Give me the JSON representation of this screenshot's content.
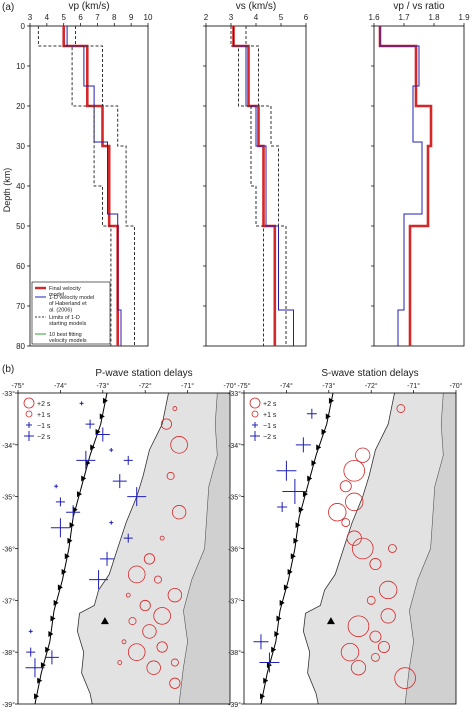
{
  "panel_a_label": "(a)",
  "panel_b_label": "(b)",
  "depth_axis_label": "Depth (km)",
  "profile_titles": [
    "vp (km/s)",
    "vs (km/s)",
    "vp / vs ratio"
  ],
  "legend": [
    {
      "label": "Final velocity model",
      "color": "#d62728",
      "style": "thick"
    },
    {
      "label": "1-D velocity model of Haberland et al. (2006)",
      "color": "#1f1fb4",
      "style": "solid"
    },
    {
      "label": "Limits of 1-D starting models",
      "color": "#333333",
      "style": "dashed"
    },
    {
      "label": "10 best fitting velocity models",
      "color": "#2ca02c",
      "style": "solid"
    }
  ],
  "map_titles": [
    "P-wave station delays",
    "S-wave station delays"
  ],
  "map_legend": [
    "+2 s",
    "+1 s",
    "−1 s",
    "−2 s"
  ],
  "map_lon_ticks": [
    "-75°",
    "-74°",
    "-73°",
    "-72°",
    "-71°",
    "-70°"
  ],
  "map_lat_ticks": [
    "-33°",
    "-34°",
    "-35°",
    "-36°",
    "-37°",
    "-38°",
    "-39°"
  ],
  "chart_data": [
    {
      "type": "line",
      "title": "vp (km/s)",
      "ylabel": "Depth (km)",
      "xlim": [
        3,
        10
      ],
      "ylim": [
        80,
        0
      ],
      "xticks": [
        3,
        4,
        5,
        6,
        7,
        8,
        9,
        10
      ],
      "yticks": [
        0,
        10,
        20,
        30,
        40,
        50,
        60,
        70,
        80
      ],
      "series": [
        {
          "name": "Final velocity model",
          "color": "#d62728",
          "values": [
            [
              5.0,
              0
            ],
            [
              5.0,
              5
            ],
            [
              6.4,
              5
            ],
            [
              6.4,
              20
            ],
            [
              7.3,
              20
            ],
            [
              7.3,
              30
            ],
            [
              7.7,
              30
            ],
            [
              7.7,
              50
            ],
            [
              8.2,
              50
            ],
            [
              8.2,
              80
            ]
          ]
        },
        {
          "name": "1-D velocity model of Haberland et al. (2006)",
          "color": "#1f1fb4",
          "values": [
            [
              5.2,
              0
            ],
            [
              5.2,
              5
            ],
            [
              6.2,
              5
            ],
            [
              6.2,
              15
            ],
            [
              6.8,
              15
            ],
            [
              6.8,
              29
            ],
            [
              7.6,
              29
            ],
            [
              7.6,
              47
            ],
            [
              8.2,
              47
            ],
            [
              8.2,
              71
            ],
            [
              8.4,
              71
            ],
            [
              8.4,
              80
            ]
          ]
        },
        {
          "name": "Limits of 1-D starting models (min)",
          "color": "#333333",
          "values": [
            [
              3.5,
              0
            ],
            [
              3.5,
              5
            ],
            [
              5.5,
              5
            ],
            [
              5.5,
              20
            ],
            [
              6.8,
              20
            ],
            [
              6.8,
              40
            ],
            [
              7.3,
              40
            ],
            [
              7.3,
              50
            ],
            [
              7.8,
              50
            ],
            [
              7.8,
              80
            ]
          ]
        },
        {
          "name": "Limits of 1-D starting models (max)",
          "color": "#333333",
          "values": [
            [
              5.7,
              0
            ],
            [
              5.7,
              5
            ],
            [
              7.3,
              5
            ],
            [
              7.3,
              20
            ],
            [
              8.2,
              20
            ],
            [
              8.2,
              30
            ],
            [
              8.7,
              30
            ],
            [
              8.7,
              50
            ],
            [
              9.2,
              50
            ],
            [
              9.2,
              80
            ]
          ]
        }
      ]
    },
    {
      "type": "line",
      "title": "vs (km/s)",
      "xlim": [
        2,
        6
      ],
      "ylim": [
        80,
        0
      ],
      "xticks": [
        2,
        3,
        4,
        5,
        6
      ],
      "series": [
        {
          "name": "Final velocity model",
          "color": "#d62728",
          "values": [
            [
              3.1,
              0
            ],
            [
              3.1,
              5
            ],
            [
              3.7,
              5
            ],
            [
              3.7,
              20
            ],
            [
              4.1,
              20
            ],
            [
              4.1,
              30
            ],
            [
              4.3,
              30
            ],
            [
              4.3,
              50
            ],
            [
              4.75,
              50
            ],
            [
              4.75,
              80
            ]
          ]
        },
        {
          "name": "1-D velocity model of Haberland et al. (2006)",
          "color": "#1f1fb4",
          "values": [
            [
              3.1,
              0
            ],
            [
              3.1,
              5
            ],
            [
              3.6,
              5
            ],
            [
              3.6,
              20
            ],
            [
              4.0,
              20
            ],
            [
              4.0,
              30
            ],
            [
              4.4,
              30
            ],
            [
              4.4,
              50
            ],
            [
              4.9,
              50
            ],
            [
              4.9,
              71
            ],
            [
              5.5,
              71
            ],
            [
              5.5,
              80
            ]
          ]
        },
        {
          "name": "Limits of 1-D starting models (min)",
          "color": "#333333",
          "values": [
            [
              3.0,
              0
            ],
            [
              3.0,
              5
            ],
            [
              3.3,
              5
            ],
            [
              3.3,
              20
            ],
            [
              3.8,
              20
            ],
            [
              3.8,
              40
            ],
            [
              4.0,
              40
            ],
            [
              4.0,
              50
            ],
            [
              4.3,
              50
            ],
            [
              4.3,
              80
            ]
          ]
        },
        {
          "name": "Limits of 1-D starting models (max)",
          "color": "#333333",
          "values": [
            [
              3.6,
              0
            ],
            [
              3.6,
              5
            ],
            [
              4.1,
              5
            ],
            [
              4.1,
              20
            ],
            [
              4.6,
              20
            ],
            [
              4.6,
              30
            ],
            [
              4.9,
              30
            ],
            [
              4.9,
              50
            ],
            [
              5.2,
              50
            ],
            [
              5.2,
              80
            ]
          ]
        }
      ]
    },
    {
      "type": "line",
      "title": "vp / vs ratio",
      "xlim": [
        1.6,
        1.9
      ],
      "ylim": [
        80,
        0
      ],
      "xticks": [
        1.6,
        1.7,
        1.8,
        1.9
      ],
      "series": [
        {
          "name": "Final velocity model",
          "color": "#d62728",
          "values": [
            [
              1.62,
              0
            ],
            [
              1.62,
              5
            ],
            [
              1.74,
              5
            ],
            [
              1.74,
              20
            ],
            [
              1.79,
              20
            ],
            [
              1.79,
              30
            ],
            [
              1.78,
              30
            ],
            [
              1.78,
              50
            ],
            [
              1.72,
              50
            ],
            [
              1.72,
              80
            ]
          ]
        },
        {
          "name": "1-D velocity model of Haberland et al. (2006)",
          "color": "#1f1fb4",
          "values": [
            [
              1.62,
              0
            ],
            [
              1.62,
              5
            ],
            [
              1.75,
              5
            ],
            [
              1.75,
              15
            ],
            [
              1.73,
              15
            ],
            [
              1.73,
              29
            ],
            [
              1.76,
              29
            ],
            [
              1.76,
              47
            ],
            [
              1.7,
              47
            ],
            [
              1.7,
              71
            ],
            [
              1.68,
              71
            ],
            [
              1.68,
              80
            ]
          ]
        }
      ]
    },
    {
      "type": "scatter",
      "title": "P-wave station delays",
      "xlim": [
        -75,
        -70
      ],
      "ylim": [
        -39,
        -33
      ],
      "series": [
        {
          "name": "+2 s / +1 s (positive delays)",
          "color": "#d62728",
          "values": [
            [
              -71.3,
              -33.3
            ],
            [
              -71.5,
              -33.6
            ],
            [
              -71.2,
              -34.0
            ],
            [
              -71.4,
              -34.6
            ],
            [
              -71.2,
              -35.3
            ],
            [
              -71.6,
              -35.8
            ],
            [
              -71.9,
              -36.2
            ],
            [
              -72.2,
              -36.5
            ],
            [
              -71.7,
              -36.6
            ],
            [
              -71.3,
              -36.9
            ],
            [
              -72.4,
              -36.9
            ],
            [
              -72.0,
              -37.1
            ],
            [
              -71.6,
              -37.3
            ],
            [
              -72.3,
              -37.4
            ],
            [
              -71.9,
              -37.6
            ],
            [
              -72.5,
              -37.8
            ],
            [
              -71.6,
              -37.9
            ],
            [
              -72.2,
              -38.0
            ],
            [
              -71.3,
              -38.2
            ],
            [
              -71.8,
              -38.3
            ],
            [
              -72.6,
              -38.2
            ],
            [
              -71.3,
              -38.6
            ]
          ]
        },
        {
          "name": "−1 s / −2 s (negative delays)",
          "color": "#1f1fb4",
          "values": [
            [
              -73.5,
              -33.2
            ],
            [
              -73.3,
              -33.6
            ],
            [
              -73.0,
              -33.8
            ],
            [
              -73.4,
              -34.3
            ],
            [
              -74.1,
              -34.8
            ],
            [
              -74.0,
              -35.1
            ],
            [
              -73.7,
              -35.3
            ],
            [
              -74.0,
              -35.6
            ],
            [
              -72.8,
              -34.1
            ],
            [
              -72.4,
              -34.3
            ],
            [
              -72.6,
              -34.7
            ],
            [
              -72.2,
              -35.0
            ],
            [
              -72.8,
              -35.5
            ],
            [
              -72.4,
              -35.8
            ],
            [
              -72.9,
              -36.2
            ],
            [
              -73.1,
              -36.6
            ],
            [
              -74.7,
              -37.6
            ],
            [
              -74.7,
              -38.0
            ],
            [
              -74.2,
              -38.1
            ],
            [
              -74.6,
              -38.3
            ]
          ]
        }
      ]
    },
    {
      "type": "scatter",
      "title": "S-wave station delays",
      "xlim": [
        -75,
        -70
      ],
      "ylim": [
        -39,
        -33
      ],
      "series": [
        {
          "name": "+2 s / +1 s (positive delays)",
          "color": "#d62728",
          "values": [
            [
              -71.3,
              -33.3
            ],
            [
              -72.2,
              -34.2
            ],
            [
              -72.4,
              -34.5
            ],
            [
              -72.6,
              -34.8
            ],
            [
              -72.4,
              -35.1
            ],
            [
              -72.6,
              -35.5
            ],
            [
              -72.4,
              -35.8
            ],
            [
              -72.2,
              -36.0
            ],
            [
              -71.9,
              -36.3
            ],
            [
              -71.6,
              -36.8
            ],
            [
              -72.0,
              -37.0
            ],
            [
              -71.6,
              -37.3
            ],
            [
              -72.3,
              -37.5
            ],
            [
              -71.9,
              -37.7
            ],
            [
              -72.5,
              -38.0
            ],
            [
              -71.9,
              -38.1
            ],
            [
              -72.3,
              -38.3
            ],
            [
              -71.2,
              -38.5
            ],
            [
              -71.7,
              -37.9
            ],
            [
              -72.8,
              -35.3
            ],
            [
              -71.5,
              -36.0
            ]
          ]
        },
        {
          "name": "−1 s / −2 s (negative delays)",
          "color": "#1f1fb4",
          "values": [
            [
              -73.4,
              -33.4
            ],
            [
              -73.6,
              -34.0
            ],
            [
              -74.0,
              -34.5
            ],
            [
              -73.8,
              -34.9
            ],
            [
              -74.1,
              -35.2
            ],
            [
              -74.6,
              -37.8
            ],
            [
              -74.4,
              -38.2
            ]
          ]
        }
      ]
    }
  ]
}
